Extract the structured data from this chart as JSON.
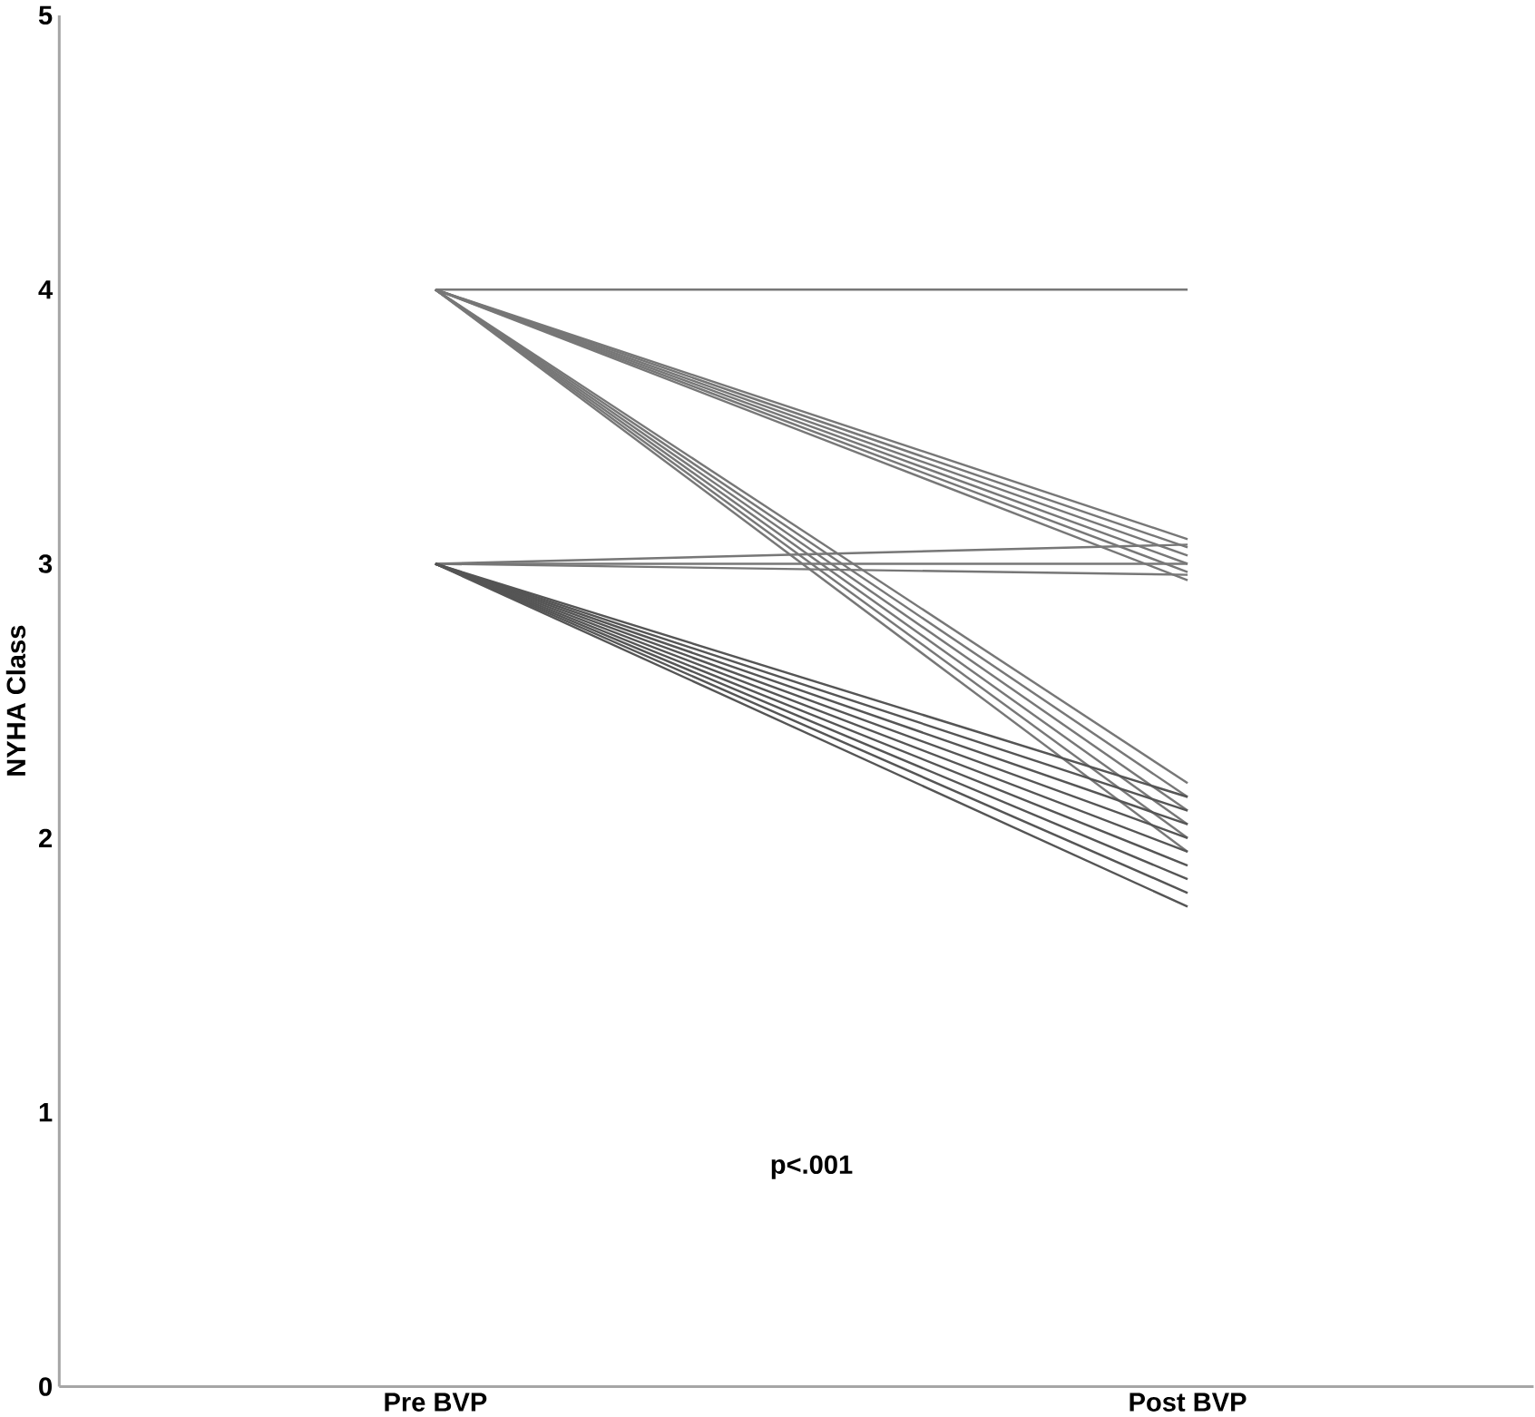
{
  "chart_data": {
    "type": "line",
    "ylabel": "NYHA Class",
    "categories": [
      "Pre BVP",
      "Post BVP"
    ],
    "ylim": [
      0,
      5
    ],
    "yticks": [
      0,
      1,
      2,
      3,
      4,
      5
    ],
    "annotations": [
      "p<.001"
    ],
    "series": [
      {
        "color": "#777777",
        "values": [
          4,
          4
        ]
      },
      {
        "color": "#777777",
        "values": [
          4,
          3.09
        ]
      },
      {
        "color": "#777777",
        "values": [
          4,
          3.06
        ]
      },
      {
        "color": "#777777",
        "values": [
          4,
          3.03
        ]
      },
      {
        "color": "#777777",
        "values": [
          4,
          3.0
        ]
      },
      {
        "color": "#777777",
        "values": [
          4,
          2.97
        ]
      },
      {
        "color": "#777777",
        "values": [
          4,
          2.94
        ]
      },
      {
        "color": "#777777",
        "values": [
          4,
          2.2
        ]
      },
      {
        "color": "#777777",
        "values": [
          4,
          2.15
        ]
      },
      {
        "color": "#777777",
        "values": [
          4,
          2.1
        ]
      },
      {
        "color": "#777777",
        "values": [
          4,
          2.05
        ]
      },
      {
        "color": "#777777",
        "values": [
          4,
          2.0
        ]
      },
      {
        "color": "#777777",
        "values": [
          4,
          1.95
        ]
      },
      {
        "color": "#777777",
        "values": [
          3,
          3.07
        ]
      },
      {
        "color": "#777777",
        "values": [
          3,
          3.0
        ]
      },
      {
        "color": "#777777",
        "values": [
          3,
          2.96
        ]
      },
      {
        "color": "#555555",
        "values": [
          3,
          2.15
        ]
      },
      {
        "color": "#555555",
        "values": [
          3,
          2.1
        ]
      },
      {
        "color": "#555555",
        "values": [
          3,
          2.05
        ]
      },
      {
        "color": "#555555",
        "values": [
          3,
          2.0
        ]
      },
      {
        "color": "#555555",
        "values": [
          3,
          1.95
        ]
      },
      {
        "color": "#555555",
        "values": [
          3,
          1.9
        ]
      },
      {
        "color": "#555555",
        "values": [
          3,
          1.85
        ]
      },
      {
        "color": "#555555",
        "values": [
          3,
          1.8
        ]
      },
      {
        "color": "#555555",
        "values": [
          3,
          1.75
        ]
      }
    ]
  }
}
